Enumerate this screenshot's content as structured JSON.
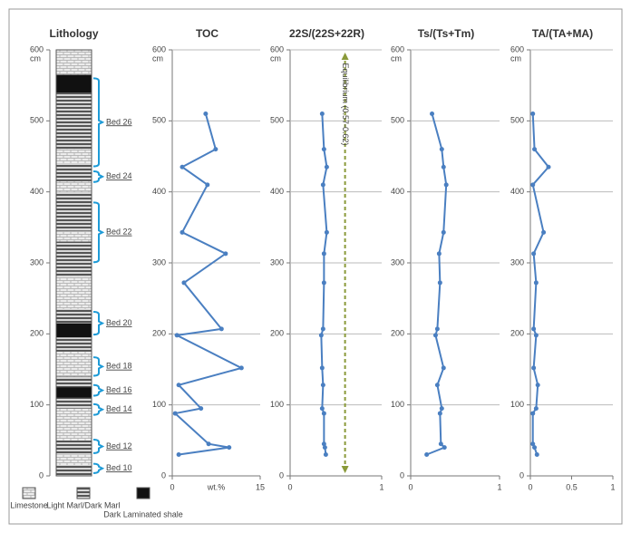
{
  "chart_data": [
    {
      "type": "lithology",
      "title": "Lithology",
      "ylabel": "cm",
      "ylim": [
        0,
        600
      ],
      "yticks": [
        0,
        100,
        200,
        300,
        400,
        500,
        600
      ],
      "legend": [
        "Limestone",
        "Light Marl/Dark Marl",
        "Dark Laminated shale"
      ],
      "layers": [
        {
          "base": 0,
          "top": 15,
          "type": 1
        },
        {
          "base": 15,
          "top": 30,
          "type": 0
        },
        {
          "base": 30,
          "top": 50,
          "type": 1
        },
        {
          "base": 50,
          "top": 95,
          "type": 0
        },
        {
          "base": 95,
          "top": 110,
          "type": 1
        },
        {
          "base": 110,
          "top": 125,
          "type": 2
        },
        {
          "base": 125,
          "top": 140,
          "type": 1
        },
        {
          "base": 140,
          "top": 175,
          "type": 0
        },
        {
          "base": 175,
          "top": 195,
          "type": 1
        },
        {
          "base": 195,
          "top": 215,
          "type": 2
        },
        {
          "base": 215,
          "top": 235,
          "type": 1
        },
        {
          "base": 235,
          "top": 280,
          "type": 0
        },
        {
          "base": 280,
          "top": 330,
          "type": 1
        },
        {
          "base": 330,
          "top": 345,
          "type": 0
        },
        {
          "base": 345,
          "top": 400,
          "type": 1
        },
        {
          "base": 400,
          "top": 415,
          "type": 0
        },
        {
          "base": 415,
          "top": 440,
          "type": 1
        },
        {
          "base": 440,
          "top": 460,
          "type": 0
        },
        {
          "base": 460,
          "top": 540,
          "type": 1
        },
        {
          "base": 540,
          "top": 565,
          "type": 2
        },
        {
          "base": 565,
          "top": 600,
          "type": 0
        }
      ],
      "beds": [
        {
          "label": "Bed 26",
          "base": 436,
          "top": 560
        },
        {
          "label": "Bed 24",
          "base": 414,
          "top": 429
        },
        {
          "label": "Bed 22",
          "base": 301,
          "top": 385
        },
        {
          "label": "Bed 20",
          "base": 199,
          "top": 231
        },
        {
          "label": "Bed 18",
          "base": 141,
          "top": 167
        },
        {
          "label": "Bed 16",
          "base": 113,
          "top": 128
        },
        {
          "label": "Bed 14",
          "base": 86,
          "top": 101
        },
        {
          "label": "Bed 12",
          "base": 32,
          "top": 51
        },
        {
          "label": "Bed 10",
          "base": 4,
          "top": 17
        }
      ]
    },
    {
      "type": "line",
      "title": "TOC",
      "xlabel": "wt.%",
      "xlim": [
        0,
        15
      ],
      "xticks": [
        0,
        15
      ],
      "ylabel": "cm",
      "ylim": [
        0,
        600
      ],
      "yticks": [
        0,
        100,
        200,
        300,
        400,
        500,
        600
      ],
      "grid": true,
      "color": "#4a7fc1",
      "depth": [
        510,
        460,
        435,
        410,
        343,
        313,
        272,
        207,
        198,
        152,
        128,
        95,
        88,
        45,
        40,
        30
      ],
      "values": [
        5.7,
        7.4,
        1.7,
        6.0,
        1.7,
        9.1,
        2.0,
        8.4,
        0.8,
        11.8,
        1.1,
        4.9,
        0.5,
        6.2,
        9.7,
        1.1
      ]
    },
    {
      "type": "line",
      "title": "22S/(22S+22R)",
      "xlim": [
        0,
        1
      ],
      "xticks": [
        0,
        1
      ],
      "ylabel": "cm",
      "ylim": [
        0,
        600
      ],
      "yticks": [
        0,
        100,
        200,
        300,
        400,
        500,
        600
      ],
      "grid": true,
      "color": "#4a7fc1",
      "reference": {
        "value": 0.6,
        "label": "Equilibrium (0.57-0.62)",
        "color": "#8a9a3a"
      },
      "depth": [
        510,
        460,
        435,
        410,
        343,
        313,
        272,
        207,
        198,
        152,
        128,
        95,
        88,
        45,
        40,
        30
      ],
      "values": [
        0.35,
        0.37,
        0.4,
        0.36,
        0.4,
        0.37,
        0.37,
        0.36,
        0.34,
        0.35,
        0.36,
        0.35,
        0.37,
        0.37,
        0.38,
        0.39
      ]
    },
    {
      "type": "line",
      "title": "Ts/(Ts+Tm)",
      "xlim": [
        0,
        1
      ],
      "xticks": [
        0,
        1
      ],
      "ylabel": "cm",
      "ylim": [
        0,
        600
      ],
      "yticks": [
        0,
        100,
        200,
        300,
        400,
        500,
        600
      ],
      "grid": true,
      "color": "#4a7fc1",
      "depth": [
        510,
        460,
        435,
        410,
        343,
        313,
        272,
        207,
        198,
        152,
        128,
        95,
        88,
        45,
        40,
        30
      ],
      "values": [
        0.24,
        0.35,
        0.37,
        0.4,
        0.37,
        0.32,
        0.33,
        0.3,
        0.28,
        0.37,
        0.3,
        0.35,
        0.33,
        0.34,
        0.38,
        0.18
      ]
    },
    {
      "type": "line",
      "title": "TA/(TA+MA)",
      "xlim": [
        0,
        1
      ],
      "xticks": [
        0,
        0.5,
        1
      ],
      "ylabel": "cm",
      "ylim": [
        0,
        600
      ],
      "yticks": [
        0,
        100,
        200,
        300,
        400,
        500,
        600
      ],
      "grid": true,
      "color": "#4a7fc1",
      "depth": [
        510,
        460,
        435,
        410,
        343,
        313,
        272,
        207,
        198,
        152,
        128,
        95,
        88,
        45,
        40,
        30
      ],
      "values": [
        0.03,
        0.05,
        0.22,
        0.03,
        0.16,
        0.04,
        0.07,
        0.04,
        0.07,
        0.04,
        0.09,
        0.07,
        0.03,
        0.03,
        0.05,
        0.08
      ]
    }
  ]
}
